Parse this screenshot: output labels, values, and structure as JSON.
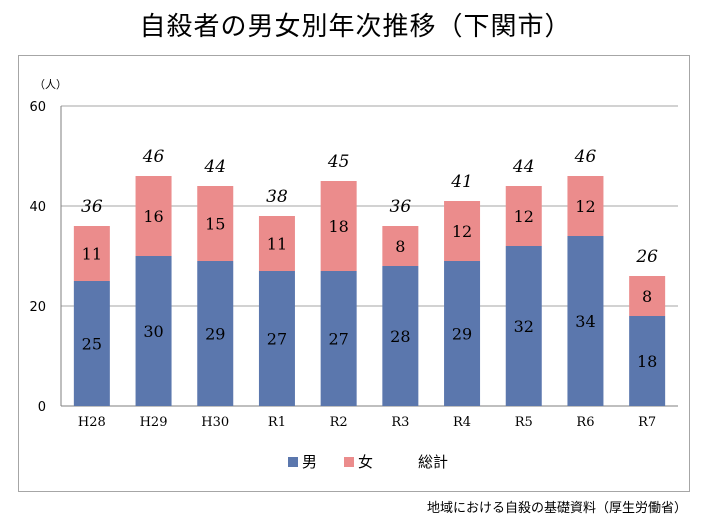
{
  "title": "自殺者の男女別年次推移（下関市）",
  "source": "地域における自殺の基礎資料（厚生労働省）",
  "chart_data": {
    "type": "bar",
    "stacked": true,
    "categories": [
      "H28",
      "H29",
      "H30",
      "R1",
      "R2",
      "R3",
      "R4",
      "R5",
      "R6",
      "R7"
    ],
    "series": [
      {
        "name": "男",
        "color": "#5b77ad",
        "values": [
          25,
          30,
          29,
          27,
          27,
          28,
          29,
          32,
          34,
          18
        ]
      },
      {
        "name": "女",
        "color": "#eb8c8c",
        "values": [
          11,
          16,
          15,
          11,
          18,
          8,
          12,
          12,
          12,
          8
        ]
      }
    ],
    "totals": [
      36,
      46,
      44,
      38,
      45,
      36,
      41,
      44,
      46,
      26
    ],
    "total_label": "総計",
    "yunit": "（人）",
    "ylim": [
      0,
      60
    ],
    "yticks": [
      0,
      20,
      40,
      60
    ],
    "grid": true,
    "legend": "bottom"
  }
}
